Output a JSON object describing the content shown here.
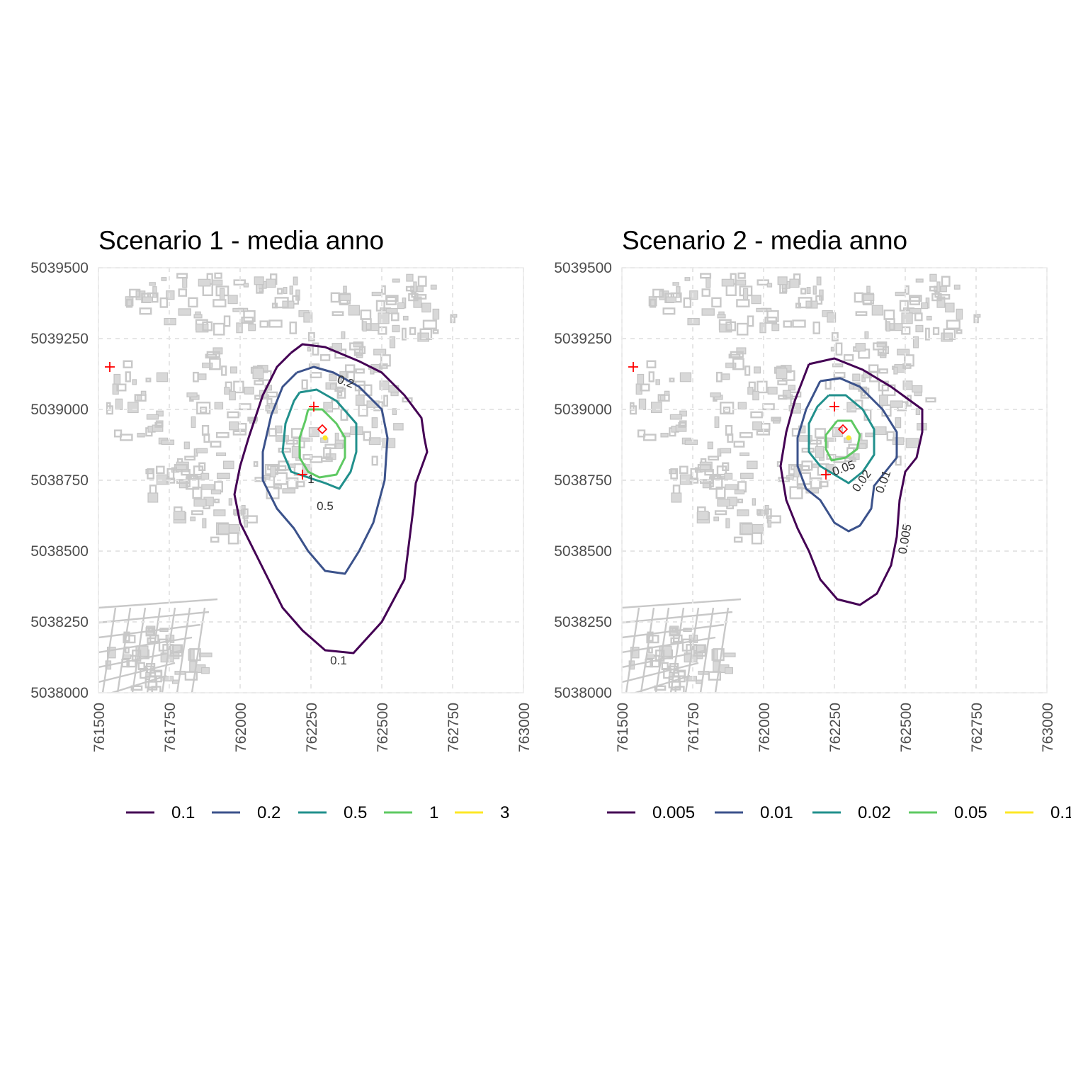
{
  "panels": [
    {
      "title": "Scenario 1 - media anno",
      "x_ticks": [
        "761500",
        "761750",
        "762000",
        "762250",
        "762500",
        "762750",
        "763000"
      ],
      "y_ticks": [
        "5039500",
        "5039250",
        "5039000",
        "5038750",
        "5038500",
        "5038250",
        "5038000"
      ],
      "legend": [
        {
          "label": "0.1",
          "color": "#440154"
        },
        {
          "label": "0.2",
          "color": "#3b528b"
        },
        {
          "label": "0.5",
          "color": "#21908c"
        },
        {
          "label": "1",
          "color": "#5ec962"
        },
        {
          "label": "3",
          "color": "#fde725"
        }
      ],
      "contour_labels": [
        "0.2",
        "0.5",
        "1",
        "0.1"
      ]
    },
    {
      "title": "Scenario 2 - media anno",
      "x_ticks": [
        "761500",
        "761750",
        "762000",
        "762250",
        "762500",
        "762750",
        "763000"
      ],
      "y_ticks": [
        "5039500",
        "5039250",
        "5039000",
        "5038750",
        "5038500",
        "5038250",
        "5038000"
      ],
      "legend": [
        {
          "label": "0.005",
          "color": "#440154"
        },
        {
          "label": "0.01",
          "color": "#3b528b"
        },
        {
          "label": "0.02",
          "color": "#21908c"
        },
        {
          "label": "0.05",
          "color": "#5ec962"
        },
        {
          "label": "0.1",
          "color": "#fde725"
        }
      ],
      "contour_labels": [
        "0.05",
        "0.02",
        "0.01",
        "0.005"
      ]
    }
  ],
  "chart_data": [
    {
      "type": "contour",
      "title": "Scenario 1 - media anno",
      "xlim": [
        761500,
        763000
      ],
      "ylim": [
        5038000,
        5039500
      ],
      "grid": true,
      "legend_position": "bottom",
      "levels": [
        {
          "level": "0.1",
          "color": "#440154",
          "points": [
            [
              762180,
              5039200
            ],
            [
              762220,
              5039230
            ],
            [
              762300,
              5039220
            ],
            [
              762420,
              5039170
            ],
            [
              762500,
              5039130
            ],
            [
              762580,
              5039050
            ],
            [
              762640,
              5038970
            ],
            [
              762650,
              5038900
            ],
            [
              762660,
              5038850
            ],
            [
              762620,
              5038740
            ],
            [
              762610,
              5038640
            ],
            [
              762580,
              5038400
            ],
            [
              762500,
              5038250
            ],
            [
              762400,
              5038140
            ],
            [
              762300,
              5038150
            ],
            [
              762220,
              5038220
            ],
            [
              762150,
              5038300
            ],
            [
              762100,
              5038400
            ],
            [
              762050,
              5038500
            ],
            [
              762000,
              5038600
            ],
            [
              761980,
              5038700
            ],
            [
              762000,
              5038800
            ],
            [
              762030,
              5038900
            ],
            [
              762080,
              5039050
            ],
            [
              762130,
              5039150
            ],
            [
              762180,
              5039200
            ]
          ]
        },
        {
          "level": "0.2",
          "color": "#3b528b",
          "points": [
            [
              762200,
              5039130
            ],
            [
              762260,
              5039150
            ],
            [
              762330,
              5039130
            ],
            [
              762420,
              5039080
            ],
            [
              762500,
              5039000
            ],
            [
              762520,
              5038900
            ],
            [
              762510,
              5038750
            ],
            [
              762470,
              5038600
            ],
            [
              762420,
              5038500
            ],
            [
              762370,
              5038420
            ],
            [
              762300,
              5038430
            ],
            [
              762240,
              5038500
            ],
            [
              762190,
              5038580
            ],
            [
              762130,
              5038650
            ],
            [
              762080,
              5038750
            ],
            [
              762080,
              5038850
            ],
            [
              762110,
              5038980
            ],
            [
              762150,
              5039080
            ],
            [
              762200,
              5039130
            ]
          ]
        },
        {
          "level": "0.5",
          "color": "#21908c",
          "points": [
            [
              762210,
              5039060
            ],
            [
              762270,
              5039070
            ],
            [
              762340,
              5039030
            ],
            [
              762410,
              5038950
            ],
            [
              762410,
              5038850
            ],
            [
              762390,
              5038780
            ],
            [
              762350,
              5038720
            ],
            [
              762300,
              5038740
            ],
            [
              762240,
              5038760
            ],
            [
              762180,
              5038780
            ],
            [
              762150,
              5038850
            ],
            [
              762160,
              5038950
            ],
            [
              762190,
              5039030
            ],
            [
              762210,
              5039060
            ]
          ]
        },
        {
          "level": "1",
          "color": "#5ec962",
          "points": [
            [
              762240,
              5039000
            ],
            [
              762290,
              5039000
            ],
            [
              762340,
              5038950
            ],
            [
              762370,
              5038900
            ],
            [
              762370,
              5038830
            ],
            [
              762340,
              5038770
            ],
            [
              762280,
              5038760
            ],
            [
              762240,
              5038780
            ],
            [
              762210,
              5038830
            ],
            [
              762210,
              5038900
            ],
            [
              762230,
              5038960
            ],
            [
              762240,
              5039000
            ]
          ]
        }
      ],
      "sources": [
        {
          "type": "cross",
          "x": 761540,
          "y": 5039150
        },
        {
          "type": "cross",
          "x": 762260,
          "y": 5039010
        },
        {
          "type": "cross",
          "x": 762220,
          "y": 5038770
        },
        {
          "type": "diamond",
          "x": 762290,
          "y": 5038930
        },
        {
          "type": "point",
          "x": 762300,
          "y": 5038900
        }
      ]
    },
    {
      "type": "contour",
      "title": "Scenario 2 - media anno",
      "xlim": [
        761500,
        763000
      ],
      "ylim": [
        5038000,
        5039500
      ],
      "grid": true,
      "legend_position": "bottom",
      "levels": [
        {
          "level": "0.005",
          "color": "#440154",
          "points": [
            [
              762160,
              5039160
            ],
            [
              762250,
              5039180
            ],
            [
              762350,
              5039140
            ],
            [
              762450,
              5039080
            ],
            [
              762560,
              5039000
            ],
            [
              762560,
              5038920
            ],
            [
              762540,
              5038830
            ],
            [
              762500,
              5038780
            ],
            [
              762480,
              5038680
            ],
            [
              762470,
              5038550
            ],
            [
              762450,
              5038450
            ],
            [
              762400,
              5038350
            ],
            [
              762340,
              5038310
            ],
            [
              762260,
              5038330
            ],
            [
              762200,
              5038400
            ],
            [
              762160,
              5038500
            ],
            [
              762120,
              5038580
            ],
            [
              762080,
              5038680
            ],
            [
              762060,
              5038800
            ],
            [
              762080,
              5038920
            ],
            [
              762110,
              5039030
            ],
            [
              762160,
              5039160
            ]
          ]
        },
        {
          "level": "0.01",
          "color": "#3b528b",
          "points": [
            [
              762200,
              5039100
            ],
            [
              762270,
              5039110
            ],
            [
              762340,
              5039080
            ],
            [
              762420,
              5039000
            ],
            [
              762470,
              5038920
            ],
            [
              762470,
              5038830
            ],
            [
              762430,
              5038780
            ],
            [
              762390,
              5038730
            ],
            [
              762380,
              5038650
            ],
            [
              762340,
              5038590
            ],
            [
              762300,
              5038570
            ],
            [
              762250,
              5038600
            ],
            [
              762200,
              5038680
            ],
            [
              762150,
              5038720
            ],
            [
              762120,
              5038800
            ],
            [
              762120,
              5038900
            ],
            [
              762150,
              5039000
            ],
            [
              762200,
              5039100
            ]
          ]
        },
        {
          "level": "0.02",
          "color": "#21908c",
          "points": [
            [
              762230,
              5039050
            ],
            [
              762290,
              5039050
            ],
            [
              762350,
              5039000
            ],
            [
              762390,
              5038930
            ],
            [
              762390,
              5038840
            ],
            [
              762350,
              5038780
            ],
            [
              762300,
              5038740
            ],
            [
              762250,
              5038770
            ],
            [
              762200,
              5038800
            ],
            [
              762160,
              5038850
            ],
            [
              762160,
              5038950
            ],
            [
              762190,
              5039010
            ],
            [
              762230,
              5039050
            ]
          ]
        },
        {
          "level": "0.05",
          "color": "#5ec962",
          "points": [
            [
              762260,
              5038960
            ],
            [
              762310,
              5038960
            ],
            [
              762340,
              5038910
            ],
            [
              762330,
              5038860
            ],
            [
              762290,
              5038830
            ],
            [
              762240,
              5038820
            ],
            [
              762220,
              5038860
            ],
            [
              762220,
              5038910
            ],
            [
              762260,
              5038960
            ]
          ]
        }
      ],
      "sources": [
        {
          "type": "cross",
          "x": 761540,
          "y": 5039150
        },
        {
          "type": "cross",
          "x": 762250,
          "y": 5039010
        },
        {
          "type": "cross",
          "x": 762220,
          "y": 5038770
        },
        {
          "type": "diamond",
          "x": 762280,
          "y": 5038930
        },
        {
          "type": "point",
          "x": 762300,
          "y": 5038900
        }
      ]
    }
  ]
}
